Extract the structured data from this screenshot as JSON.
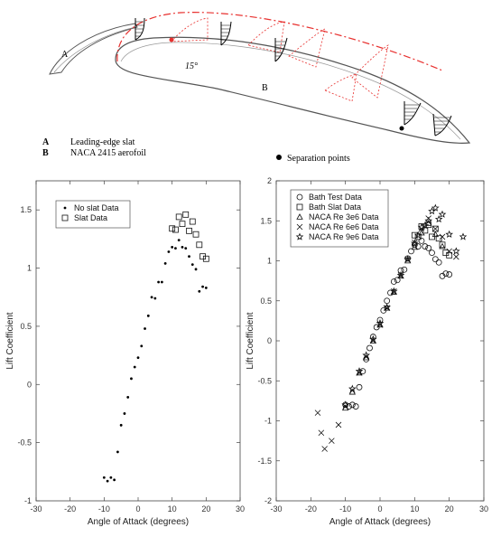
{
  "diagram": {
    "label_a": "A",
    "label_b": "B",
    "angle_label": "15°",
    "legend": [
      {
        "key": "A",
        "text": "Leading-edge slat"
      },
      {
        "key": "B",
        "text": "NACA 2415 aerofoil"
      }
    ],
    "separation_label": "Separation points",
    "colors": {
      "profile": "#555555",
      "red": "#e8312f",
      "boundary_layer": "#000000"
    }
  },
  "chart_data": [
    {
      "type": "scatter",
      "title": "",
      "xlabel": "Angle of Attack (degrees)",
      "ylabel": "Lift Coefficient",
      "xlim": [
        -30,
        30
      ],
      "ylim": [
        -1,
        1.75
      ],
      "xticks": [
        "-30",
        "-20",
        "-10",
        "0",
        "10",
        "20",
        "30"
      ],
      "yticks": [
        "-1",
        "-0.5",
        "0",
        "0.5",
        "1",
        "1.5"
      ],
      "xtick_values": [
        -30,
        -20,
        -10,
        0,
        10,
        20,
        30
      ],
      "ytick_values": [
        -1,
        -0.5,
        0,
        0.5,
        1,
        1.5
      ],
      "legend_position": "top-left",
      "grid": false,
      "series": [
        {
          "name": "No slat Data",
          "marker": "dot",
          "x": [
            -10,
            -9,
            -8,
            -7,
            -6,
            -5,
            -4,
            -3,
            -2,
            -1,
            0,
            1,
            2,
            3,
            4,
            5,
            6,
            7,
            8,
            9,
            10,
            11,
            12,
            13,
            14,
            15,
            16,
            17,
            18,
            19,
            20
          ],
          "y": [
            -0.8,
            -0.83,
            -0.8,
            -0.82,
            -0.58,
            -0.35,
            -0.25,
            -0.11,
            0.05,
            0.15,
            0.23,
            0.33,
            0.48,
            0.59,
            0.75,
            0.74,
            0.88,
            0.88,
            1.04,
            1.14,
            1.18,
            1.17,
            1.24,
            1.18,
            1.17,
            1.1,
            1.03,
            0.99,
            0.8,
            0.84,
            0.83
          ]
        },
        {
          "name": "Slat Data",
          "marker": "square",
          "x": [
            10,
            11,
            12,
            13,
            14,
            15,
            16,
            17,
            18,
            19,
            20
          ],
          "y": [
            1.34,
            1.33,
            1.44,
            1.38,
            1.46,
            1.32,
            1.4,
            1.29,
            1.2,
            1.1,
            1.08
          ]
        }
      ]
    },
    {
      "type": "scatter",
      "title": "",
      "xlabel": "Angle of Attack (degrees)",
      "ylabel": "Lift Coefficient",
      "xlim": [
        -30,
        30
      ],
      "ylim": [
        -2,
        2
      ],
      "xticks": [
        "-30",
        "-20",
        "-10",
        "0",
        "10",
        "20",
        "30"
      ],
      "yticks": [
        "-2",
        "-1.5",
        "-1",
        "-0.5",
        "0",
        "0.5",
        "1",
        "1.5",
        "2"
      ],
      "xtick_values": [
        -30,
        -20,
        -10,
        0,
        10,
        20,
        30
      ],
      "ytick_values": [
        -2,
        -1.5,
        -1,
        -0.5,
        0,
        0.5,
        1,
        1.5,
        2
      ],
      "legend_position": "top-left",
      "grid": false,
      "series": [
        {
          "name": "Bath Test Data",
          "marker": "circle",
          "x": [
            -10,
            -9,
            -8,
            -7,
            -6,
            -5,
            -4,
            -3,
            -2,
            -1,
            0,
            1,
            2,
            3,
            4,
            5,
            6,
            7,
            8,
            9,
            10,
            11,
            12,
            13,
            14,
            15,
            16,
            17,
            18,
            19,
            20
          ],
          "y": [
            -0.8,
            -0.82,
            -0.8,
            -0.82,
            -0.58,
            -0.38,
            -0.23,
            -0.09,
            0.05,
            0.17,
            0.26,
            0.38,
            0.5,
            0.6,
            0.74,
            0.76,
            0.88,
            0.89,
            1.03,
            1.12,
            1.2,
            1.18,
            1.25,
            1.18,
            1.16,
            1.1,
            1.02,
            0.98,
            0.81,
            0.84,
            0.83
          ]
        },
        {
          "name": "Bath Slat Data",
          "marker": "square",
          "x": [
            10,
            11,
            12,
            13,
            14,
            15,
            16,
            17,
            18,
            19,
            20
          ],
          "y": [
            1.32,
            1.3,
            1.43,
            1.38,
            1.45,
            1.3,
            1.4,
            1.28,
            1.2,
            1.1,
            1.07
          ]
        },
        {
          "name": "NACA Re 3e6 Data",
          "marker": "triangle",
          "x": [
            -10,
            -8,
            -6,
            -4,
            -2,
            0,
            2,
            4,
            6,
            8,
            10,
            12,
            14,
            16,
            18
          ],
          "y": [
            -0.84,
            -0.64,
            -0.4,
            -0.21,
            0.0,
            0.2,
            0.41,
            0.61,
            0.81,
            1.0,
            1.17,
            1.35,
            1.47,
            1.33,
            1.18
          ]
        },
        {
          "name": "NACA Re 6e6 Data",
          "marker": "x",
          "x": [
            -18,
            -17,
            -16,
            -14,
            -12,
            -10,
            -8,
            -6,
            -4,
            -2,
            0,
            2,
            4,
            6,
            8,
            10,
            12,
            14,
            16,
            18,
            20,
            22
          ],
          "y": [
            -0.9,
            -1.15,
            -1.35,
            -1.25,
            -1.05,
            -0.82,
            -0.62,
            -0.4,
            -0.2,
            0.0,
            0.2,
            0.41,
            0.62,
            0.82,
            1.02,
            1.23,
            1.4,
            1.53,
            1.4,
            1.3,
            1.12,
            1.05
          ]
        },
        {
          "name": "NACA Re 9e6 Data",
          "marker": "star",
          "x": [
            -10,
            -8,
            -6,
            -4,
            -2,
            0,
            2,
            4,
            6,
            8,
            10,
            11,
            12,
            13,
            14,
            15,
            16,
            17,
            18,
            20,
            22,
            24
          ],
          "y": [
            -0.8,
            -0.6,
            -0.38,
            -0.18,
            0.02,
            0.22,
            0.42,
            0.62,
            0.82,
            1.02,
            1.22,
            1.32,
            1.42,
            1.44,
            1.5,
            1.62,
            1.66,
            1.52,
            1.58,
            1.33,
            1.12,
            1.3
          ]
        }
      ]
    }
  ]
}
